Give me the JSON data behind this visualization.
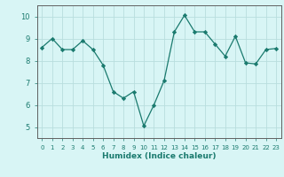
{
  "x": [
    0,
    1,
    2,
    3,
    4,
    5,
    6,
    7,
    8,
    9,
    10,
    11,
    12,
    13,
    14,
    15,
    16,
    17,
    18,
    19,
    20,
    21,
    22,
    23
  ],
  "y": [
    8.6,
    9.0,
    8.5,
    8.5,
    8.9,
    8.5,
    7.8,
    6.6,
    6.3,
    6.6,
    5.05,
    6.0,
    7.1,
    9.3,
    10.05,
    9.3,
    9.3,
    8.75,
    8.2,
    9.1,
    7.9,
    7.85,
    8.5,
    8.55
  ],
  "line_color": "#1a7a6e",
  "marker": "D",
  "marker_size": 2.2,
  "bg_color": "#d8f5f5",
  "grid_color": "#b8dede",
  "xlabel": "Humidex (Indice chaleur)",
  "ylabel": "",
  "xlim": [
    -0.5,
    23.5
  ],
  "ylim": [
    4.5,
    10.5
  ],
  "yticks": [
    5,
    6,
    7,
    8,
    9,
    10
  ],
  "xticks": [
    0,
    1,
    2,
    3,
    4,
    5,
    6,
    7,
    8,
    9,
    10,
    11,
    12,
    13,
    14,
    15,
    16,
    17,
    18,
    19,
    20,
    21,
    22,
    23
  ],
  "tick_color": "#1a7a6e",
  "label_color": "#1a7a6e",
  "spine_color": "#606060"
}
